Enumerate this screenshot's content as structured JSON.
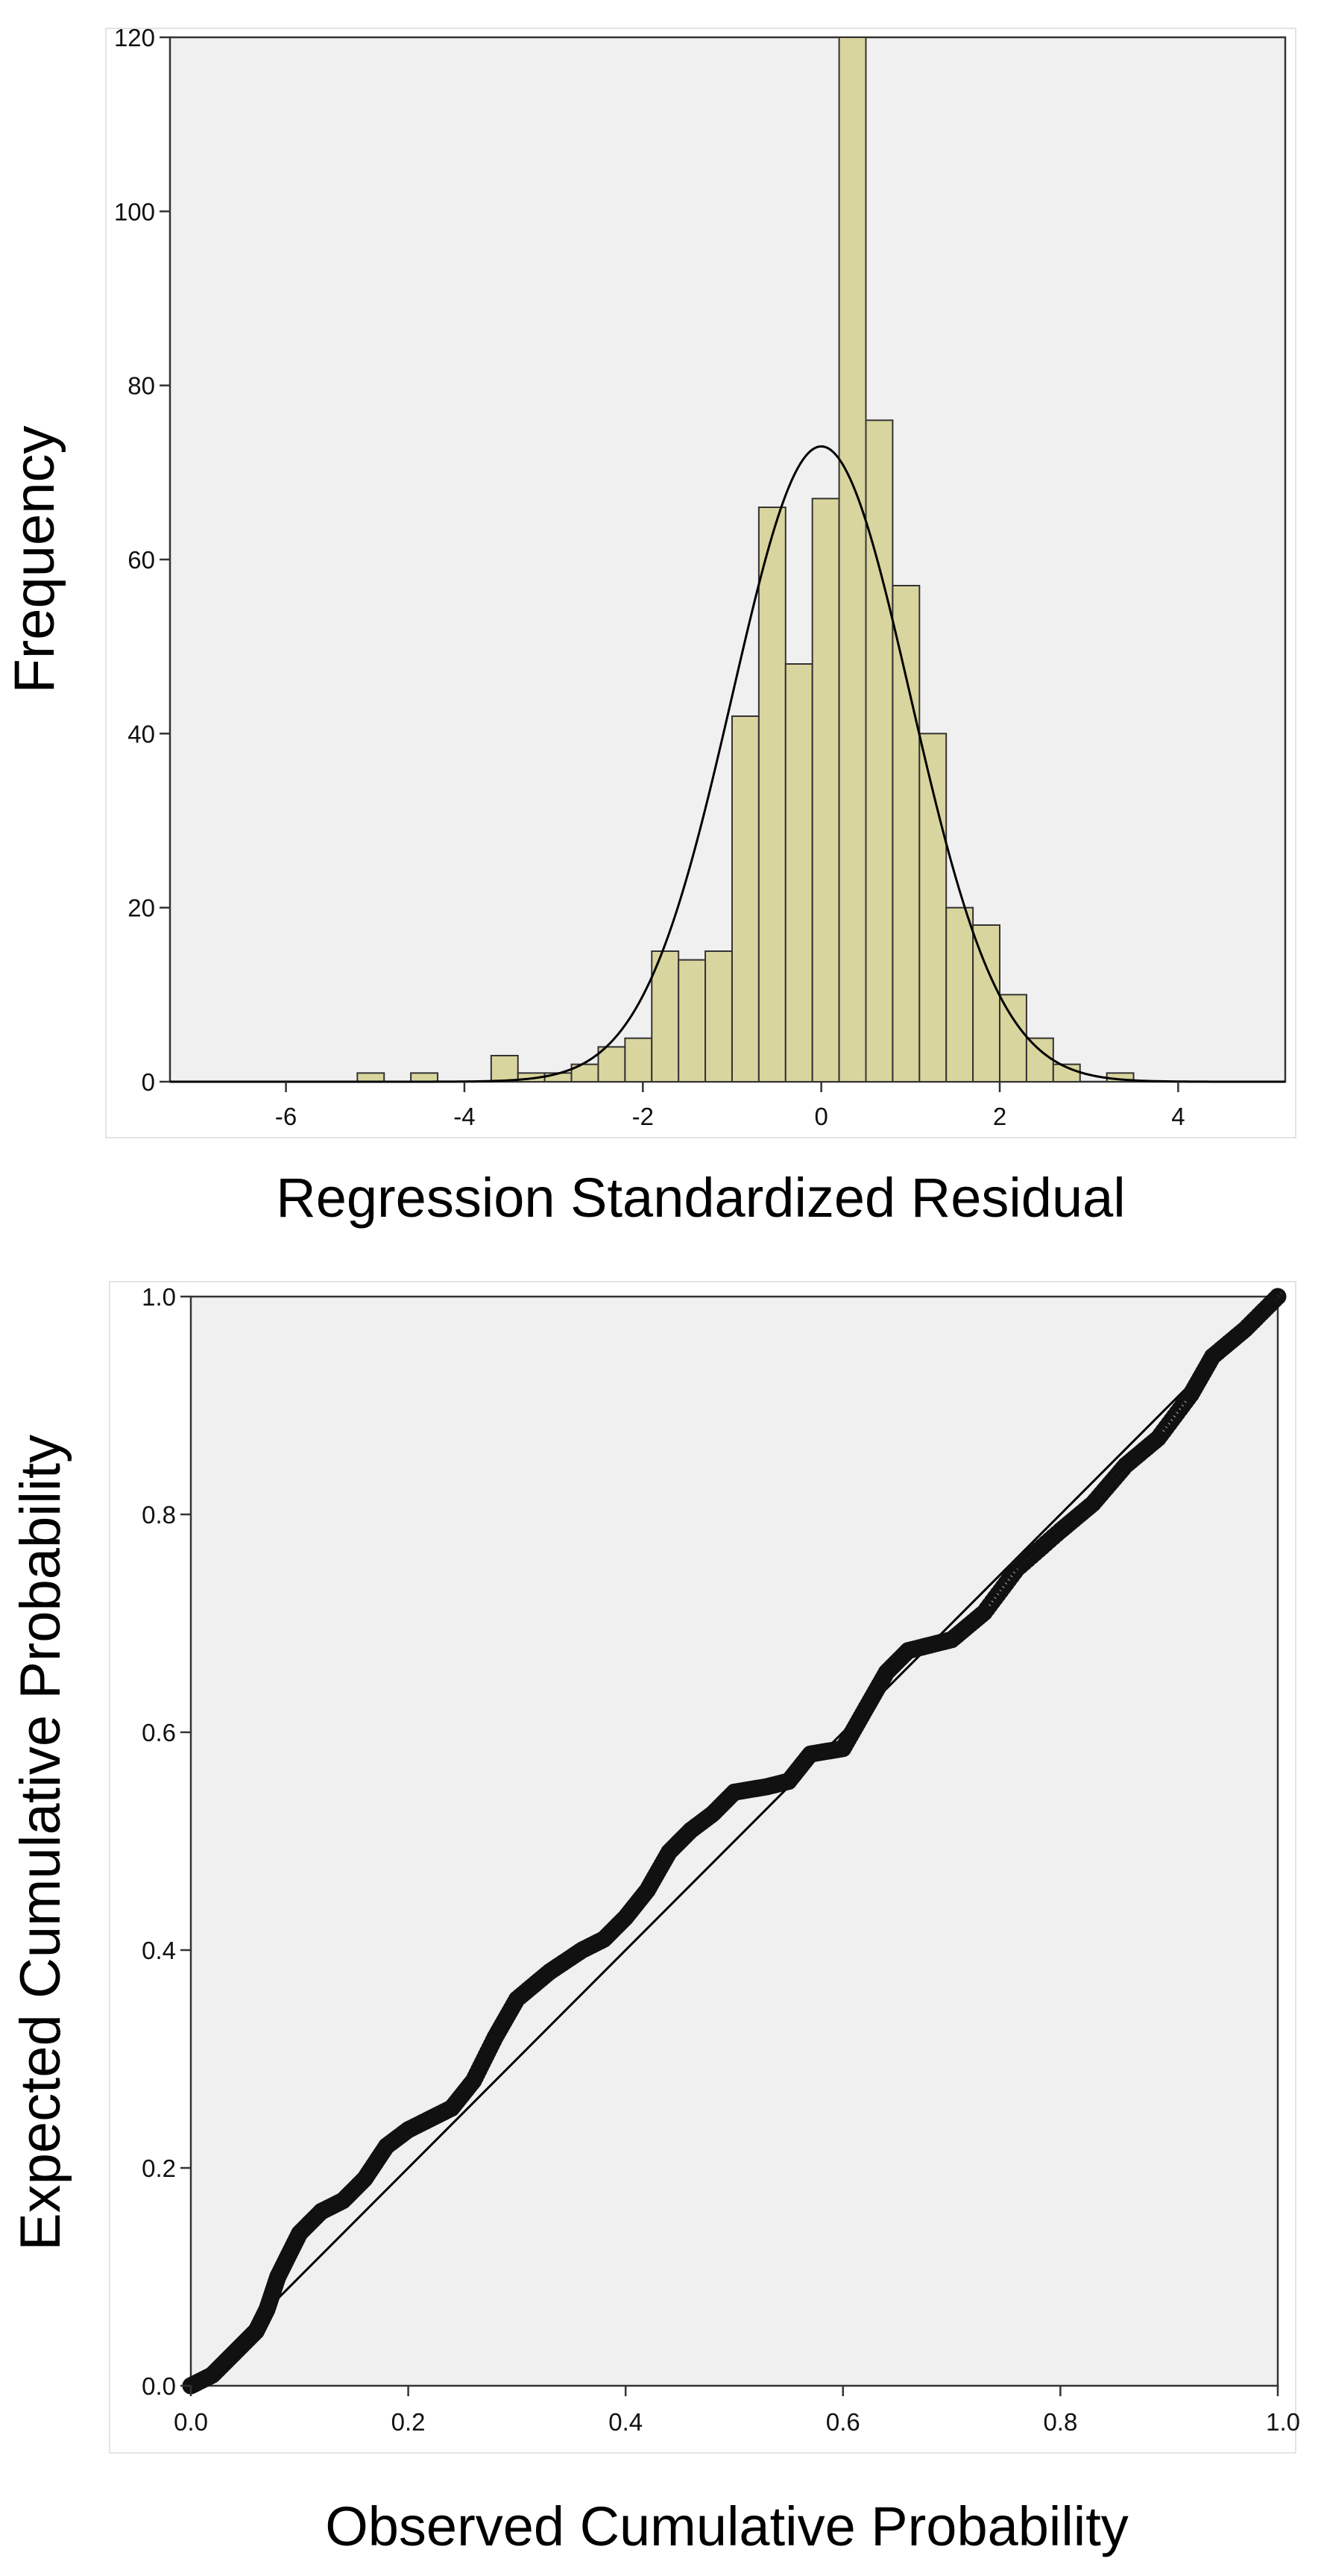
{
  "chart_data": [
    {
      "type": "bar",
      "subtype": "histogram",
      "xlabel": "Regression Standardized Residual",
      "ylabel": "Frequency",
      "xlim": [
        -7.3,
        5.2
      ],
      "ylim": [
        0,
        120
      ],
      "x_ticks": [
        "-6",
        "-4",
        "-2",
        "0",
        "2",
        "4"
      ],
      "x_tick_values": [
        -6,
        -4,
        -2,
        0,
        2,
        4
      ],
      "y_ticks": [
        "0",
        "20",
        "40",
        "60",
        "80",
        "100",
        "120"
      ],
      "y_tick_values": [
        0,
        20,
        40,
        60,
        80,
        100,
        120
      ],
      "bin_width": 0.3,
      "bins": [
        {
          "start": -5.2,
          "count": 1
        },
        {
          "start": -4.6,
          "count": 1
        },
        {
          "start": -3.7,
          "count": 3
        },
        {
          "start": -3.4,
          "count": 1
        },
        {
          "start": -3.1,
          "count": 1
        },
        {
          "start": -2.8,
          "count": 2
        },
        {
          "start": -2.5,
          "count": 4
        },
        {
          "start": -2.2,
          "count": 5
        },
        {
          "start": -1.9,
          "count": 15
        },
        {
          "start": -1.6,
          "count": 14
        },
        {
          "start": -1.3,
          "count": 15
        },
        {
          "start": -1.0,
          "count": 42
        },
        {
          "start": -0.7,
          "count": 66
        },
        {
          "start": -0.4,
          "count": 48
        },
        {
          "start": -0.1,
          "count": 67
        },
        {
          "start": 0.2,
          "count": 120
        },
        {
          "start": 0.5,
          "count": 76
        },
        {
          "start": 0.8,
          "count": 57
        },
        {
          "start": 1.1,
          "count": 40
        },
        {
          "start": 1.4,
          "count": 20
        },
        {
          "start": 1.7,
          "count": 18
        },
        {
          "start": 2.0,
          "count": 10
        },
        {
          "start": 2.3,
          "count": 5
        },
        {
          "start": 2.6,
          "count": 2
        },
        {
          "start": 3.2,
          "count": 1
        }
      ],
      "normal_curve": {
        "mean": 0,
        "std_dev": 1,
        "peak": 73
      },
      "colors": {
        "bar_fill": "#d9d59e",
        "bar_stroke": "#333333",
        "plot_bg": "#f0f0f0",
        "curve": "#000000"
      }
    },
    {
      "type": "scatter",
      "subtype": "P-P plot",
      "xlabel": "Observed Cumulative Probability",
      "ylabel": "Expected Cumulative Probability",
      "xlim": [
        0,
        1
      ],
      "ylim": [
        0,
        1
      ],
      "x_ticks": [
        "0.0",
        "0.2",
        "0.4",
        "0.6",
        "0.8",
        "1.0"
      ],
      "x_tick_values": [
        0,
        0.2,
        0.4,
        0.6,
        0.8,
        1.0
      ],
      "y_ticks": [
        "0.0",
        "0.2",
        "0.4",
        "0.6",
        "0.8",
        "1.0"
      ],
      "y_tick_values": [
        0,
        0.2,
        0.4,
        0.6,
        0.8,
        1.0
      ],
      "reference_line": [
        [
          0,
          0
        ],
        [
          1,
          1
        ]
      ],
      "points_curve": [
        [
          0.0,
          0.0
        ],
        [
          0.02,
          0.01
        ],
        [
          0.04,
          0.03
        ],
        [
          0.06,
          0.05
        ],
        [
          0.07,
          0.07
        ],
        [
          0.08,
          0.1
        ],
        [
          0.09,
          0.12
        ],
        [
          0.1,
          0.14
        ],
        [
          0.12,
          0.16
        ],
        [
          0.14,
          0.17
        ],
        [
          0.16,
          0.19
        ],
        [
          0.18,
          0.22
        ],
        [
          0.2,
          0.235
        ],
        [
          0.22,
          0.245
        ],
        [
          0.24,
          0.255
        ],
        [
          0.26,
          0.28
        ],
        [
          0.28,
          0.32
        ],
        [
          0.3,
          0.355
        ],
        [
          0.33,
          0.38
        ],
        [
          0.36,
          0.4
        ],
        [
          0.38,
          0.41
        ],
        [
          0.4,
          0.43
        ],
        [
          0.42,
          0.455
        ],
        [
          0.44,
          0.49
        ],
        [
          0.46,
          0.51
        ],
        [
          0.48,
          0.525
        ],
        [
          0.5,
          0.545
        ],
        [
          0.53,
          0.55
        ],
        [
          0.55,
          0.555
        ],
        [
          0.57,
          0.58
        ],
        [
          0.6,
          0.585
        ],
        [
          0.62,
          0.62
        ],
        [
          0.64,
          0.655
        ],
        [
          0.66,
          0.675
        ],
        [
          0.7,
          0.685
        ],
        [
          0.73,
          0.71
        ],
        [
          0.76,
          0.75
        ],
        [
          0.8,
          0.785
        ],
        [
          0.83,
          0.81
        ],
        [
          0.86,
          0.845
        ],
        [
          0.89,
          0.87
        ],
        [
          0.92,
          0.91
        ],
        [
          0.94,
          0.945
        ],
        [
          0.97,
          0.97
        ],
        [
          1.0,
          1.0
        ]
      ],
      "colors": {
        "marker": "#111111",
        "plot_bg": "#f0f0f0",
        "line": "#000000"
      }
    }
  ]
}
